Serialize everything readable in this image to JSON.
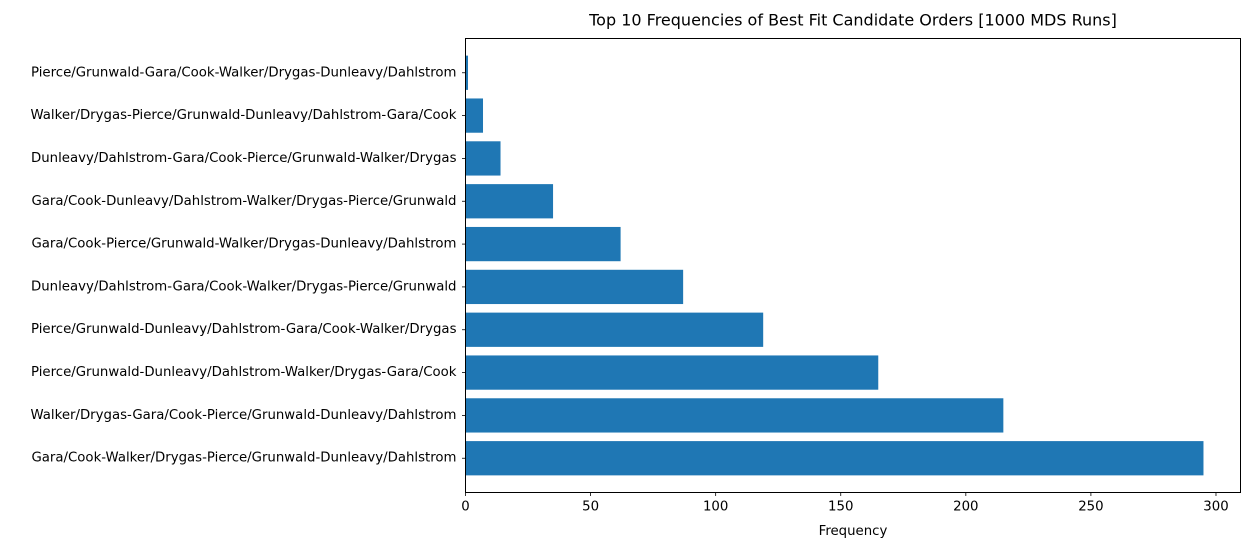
{
  "chart_data": {
    "type": "bar",
    "orientation": "horizontal",
    "title": "Top 10 Frequencies of Best Fit Candidate Orders [1000 MDS Runs]",
    "xlabel": "Frequency",
    "ylabel": "",
    "xlim": [
      0,
      309.8
    ],
    "xticks": [
      0,
      50,
      100,
      150,
      200,
      250,
      300
    ],
    "grid": false,
    "bar_color": "#1f77b4",
    "categories": [
      "Gara/Cook-Walker/Drygas-Pierce/Grunwald-Dunleavy/Dahlstrom",
      "Walker/Drygas-Gara/Cook-Pierce/Grunwald-Dunleavy/Dahlstrom",
      "Pierce/Grunwald-Dunleavy/Dahlstrom-Walker/Drygas-Gara/Cook",
      "Pierce/Grunwald-Dunleavy/Dahlstrom-Gara/Cook-Walker/Drygas",
      "Dunleavy/Dahlstrom-Gara/Cook-Walker/Drygas-Pierce/Grunwald",
      "Gara/Cook-Pierce/Grunwald-Walker/Drygas-Dunleavy/Dahlstrom",
      "Gara/Cook-Dunleavy/Dahlstrom-Walker/Drygas-Pierce/Grunwald",
      "Dunleavy/Dahlstrom-Gara/Cook-Pierce/Grunwald-Walker/Drygas",
      "Walker/Drygas-Pierce/Grunwald-Dunleavy/Dahlstrom-Gara/Cook",
      "Pierce/Grunwald-Gara/Cook-Walker/Drygas-Dunleavy/Dahlstrom"
    ],
    "values": [
      295,
      215,
      165,
      119,
      87,
      62,
      35,
      14,
      7,
      1
    ]
  }
}
